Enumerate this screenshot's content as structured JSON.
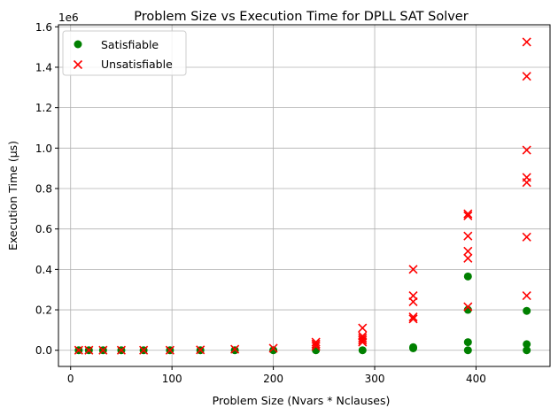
{
  "chart_data": {
    "type": "scatter",
    "title": "Problem Size vs Execution Time for DPLL SAT Solver",
    "xlabel": "Problem Size (Nvars * Nclauses)",
    "ylabel": "Execution Time (µs)",
    "y_multiplier": "1e6",
    "xlim": [
      -12,
      473
    ],
    "ylim": [
      -0.08,
      1.61
    ],
    "xticks": [
      0,
      100,
      200,
      300,
      400
    ],
    "xtick_labels": [
      "0",
      "100",
      "200",
      "300",
      "400"
    ],
    "yticks": [
      0.0,
      0.2,
      0.4,
      0.6,
      0.8,
      1.0,
      1.2,
      1.4,
      1.6
    ],
    "ytick_labels": [
      "0.0",
      "0.2",
      "0.4",
      "0.6",
      "0.8",
      "1.0",
      "1.2",
      "1.4",
      "1.6"
    ],
    "grid": true,
    "legend": "top-left",
    "series": [
      {
        "name": "Satisfiable",
        "marker": "circle",
        "color": "#008000",
        "points": [
          [
            8,
            0.0
          ],
          [
            18,
            0.0
          ],
          [
            32,
            0.0
          ],
          [
            50,
            0.0
          ],
          [
            72,
            0.0
          ],
          [
            98,
            0.0
          ],
          [
            128,
            0.0
          ],
          [
            162,
            0.0
          ],
          [
            200,
            0.0
          ],
          [
            242,
            0.0
          ],
          [
            288,
            0.0
          ],
          [
            338,
            0.01
          ],
          [
            338,
            0.015
          ],
          [
            392,
            0.0
          ],
          [
            392,
            0.04
          ],
          [
            392,
            0.2
          ],
          [
            392,
            0.365
          ],
          [
            450,
            0.0
          ],
          [
            450,
            0.03
          ],
          [
            450,
            0.195
          ]
        ]
      },
      {
        "name": "Unsatisfiable",
        "marker": "x",
        "color": "#ff0000",
        "points": [
          [
            8,
            0.0
          ],
          [
            18,
            0.0
          ],
          [
            32,
            0.0
          ],
          [
            50,
            0.0
          ],
          [
            72,
            0.0
          ],
          [
            98,
            0.0
          ],
          [
            128,
            0.002
          ],
          [
            162,
            0.005
          ],
          [
            200,
            0.01
          ],
          [
            242,
            0.02
          ],
          [
            242,
            0.03
          ],
          [
            242,
            0.04
          ],
          [
            288,
            0.04
          ],
          [
            288,
            0.05
          ],
          [
            288,
            0.06
          ],
          [
            288,
            0.07
          ],
          [
            288,
            0.11
          ],
          [
            338,
            0.155
          ],
          [
            338,
            0.165
          ],
          [
            338,
            0.24
          ],
          [
            338,
            0.27
          ],
          [
            338,
            0.4
          ],
          [
            392,
            0.215
          ],
          [
            392,
            0.455
          ],
          [
            392,
            0.49
          ],
          [
            392,
            0.565
          ],
          [
            392,
            0.665
          ],
          [
            392,
            0.675
          ],
          [
            450,
            0.27
          ],
          [
            450,
            0.56
          ],
          [
            450,
            0.83
          ],
          [
            450,
            0.855
          ],
          [
            450,
            0.99
          ],
          [
            450,
            1.355
          ],
          [
            450,
            1.525
          ]
        ]
      }
    ]
  }
}
